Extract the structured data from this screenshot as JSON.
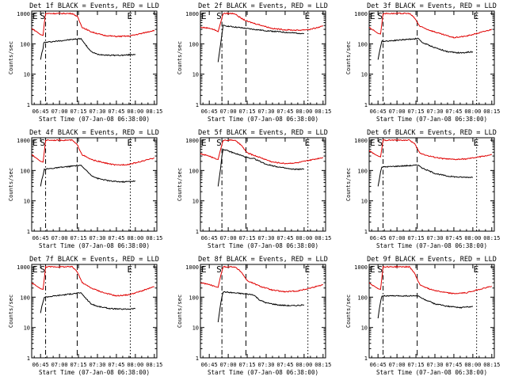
{
  "colors": {
    "events": "#000000",
    "lld": "#e00000",
    "axis": "#000000"
  },
  "shared": {
    "ylabel": "Counts/sec",
    "xlabel": "Start Time (07-Jan-08 06:38:00)",
    "xticks": [
      "06:45",
      "07:00",
      "07:15",
      "07:30",
      "07:45",
      "08:00",
      "08:15"
    ],
    "yticks": [
      "1",
      "10",
      "100",
      "1000"
    ]
  },
  "chart_data": [
    {
      "type": "line",
      "title": "Det 1f BLACK = Events, RED = LLD",
      "marks": {
        "E_left": "E",
        "S": "S",
        "E_right": "E"
      },
      "xlim": [
        "06:38",
        "08:17"
      ],
      "ylim": [
        1,
        1200
      ],
      "yscale": "log",
      "vlines": [
        {
          "x": "06:49",
          "style": "dash-dot"
        },
        {
          "x": "07:14",
          "style": "dash"
        },
        {
          "x": "07:56",
          "style": "dotted"
        }
      ],
      "series": [
        {
          "name": "Events",
          "color": "#000000",
          "x": [
            "06:45",
            "06:46",
            "06:47",
            "06:47.5",
            "07:17",
            "07:20",
            "07:25",
            "07:30",
            "07:40",
            "07:50",
            "08:00"
          ],
          "values": [
            30,
            50,
            70,
            110,
            150,
            100,
            55,
            45,
            42,
            42,
            45
          ]
        },
        {
          "name": "LLD",
          "color": "#e00000",
          "x": [
            "06:38",
            "06:42",
            "06:45",
            "06:47",
            "06:48",
            "06:49",
            "07:10",
            "07:14",
            "07:18",
            "07:25",
            "07:35",
            "07:45",
            "07:55",
            "08:05",
            "08:15"
          ],
          "values": [
            320,
            250,
            200,
            190,
            500,
            1000,
            1000,
            800,
            350,
            250,
            190,
            175,
            180,
            220,
            280
          ]
        }
      ]
    },
    {
      "type": "line",
      "title": "Det 2f BLACK = Events, RED = LLD",
      "marks": {
        "E_left": "E",
        "S": "S",
        "E_right": "E"
      },
      "xlim": [
        "06:38",
        "08:17"
      ],
      "ylim": [
        1,
        1200
      ],
      "yscale": "log",
      "vlines": [
        {
          "x": "06:55",
          "style": "dash-dot"
        },
        {
          "x": "07:14",
          "style": "dash"
        },
        {
          "x": "08:03",
          "style": "dotted"
        }
      ],
      "series": [
        {
          "name": "Events",
          "color": "#000000",
          "x": [
            "06:52",
            "06:53",
            "06:54",
            "06:55",
            "06:56",
            "07:20",
            "07:30",
            "07:40",
            "07:50",
            "08:00"
          ],
          "values": [
            25,
            50,
            100,
            200,
            400,
            300,
            270,
            250,
            230,
            220
          ]
        },
        {
          "name": "LLD",
          "color": "#e00000",
          "x": [
            "06:38",
            "06:45",
            "06:50",
            "06:52",
            "06:54",
            "06:56",
            "07:05",
            "07:10",
            "07:15",
            "07:25",
            "07:35",
            "07:45",
            "07:55",
            "08:05",
            "08:15"
          ],
          "values": [
            350,
            330,
            280,
            250,
            500,
            1000,
            1000,
            700,
            550,
            420,
            320,
            290,
            280,
            300,
            380
          ]
        }
      ]
    },
    {
      "type": "line",
      "title": "Det 3f BLACK = Events, RED = LLD",
      "marks": {
        "E_left": "E",
        "S": "S",
        "E_right": "E"
      },
      "xlim": [
        "06:38",
        "08:17"
      ],
      "ylim": [
        1,
        1200
      ],
      "yscale": "log",
      "vlines": [
        {
          "x": "06:49",
          "style": "dash-dot"
        },
        {
          "x": "07:16",
          "style": "dash"
        },
        {
          "x": "08:03",
          "style": "dotted"
        }
      ],
      "series": [
        {
          "name": "Events",
          "color": "#000000",
          "x": [
            "06:45",
            "06:46",
            "06:47",
            "06:48",
            "07:17",
            "07:20",
            "07:30",
            "07:40",
            "07:50",
            "08:00"
          ],
          "values": [
            30,
            50,
            80,
            120,
            150,
            110,
            75,
            55,
            50,
            55
          ]
        },
        {
          "name": "LLD",
          "color": "#e00000",
          "x": [
            "06:38",
            "06:42",
            "06:45",
            "06:47",
            "06:49",
            "07:10",
            "07:14",
            "07:18",
            "07:25",
            "07:35",
            "07:45",
            "07:55",
            "08:05",
            "08:15"
          ],
          "values": [
            350,
            270,
            220,
            210,
            1000,
            1000,
            700,
            380,
            290,
            210,
            160,
            180,
            230,
            300
          ]
        }
      ]
    },
    {
      "type": "line",
      "title": "Det 4f BLACK = Events, RED = LLD",
      "marks": {
        "E_left": "E",
        "S": "S",
        "E_right": "E"
      },
      "xlim": [
        "06:38",
        "08:17"
      ],
      "ylim": [
        1,
        1200
      ],
      "yscale": "log",
      "vlines": [
        {
          "x": "06:49",
          "style": "dash-dot"
        },
        {
          "x": "07:14",
          "style": "dash"
        },
        {
          "x": "07:56",
          "style": "dotted"
        }
      ],
      "series": [
        {
          "name": "Events",
          "color": "#000000",
          "x": [
            "06:45",
            "06:46",
            "06:47",
            "06:48",
            "07:17",
            "07:20",
            "07:25",
            "07:30",
            "07:40",
            "07:50",
            "08:00"
          ],
          "values": [
            30,
            50,
            70,
            110,
            150,
            110,
            70,
            55,
            45,
            42,
            45
          ]
        },
        {
          "name": "LLD",
          "color": "#e00000",
          "x": [
            "06:38",
            "06:42",
            "06:45",
            "06:47",
            "06:49",
            "07:10",
            "07:14",
            "07:18",
            "07:25",
            "07:35",
            "07:45",
            "07:55",
            "08:05",
            "08:15"
          ],
          "values": [
            330,
            250,
            200,
            190,
            1000,
            1000,
            700,
            330,
            230,
            180,
            150,
            160,
            200,
            260
          ]
        }
      ]
    },
    {
      "type": "line",
      "title": "Det 5f BLACK = Events, RED = LLD",
      "marks": {
        "E_left": "E",
        "S": "S",
        "E_right": "E"
      },
      "xlim": [
        "06:38",
        "08:17"
      ],
      "ylim": [
        1,
        1200
      ],
      "yscale": "log",
      "vlines": [
        {
          "x": "06:55",
          "style": "dash-dot"
        },
        {
          "x": "07:14",
          "style": "dash"
        },
        {
          "x": "08:03",
          "style": "dotted"
        }
      ],
      "series": [
        {
          "name": "Events",
          "color": "#000000",
          "x": [
            "06:52",
            "06:53",
            "06:54",
            "06:55",
            "06:56",
            "07:17",
            "07:20",
            "07:25",
            "07:30",
            "07:40",
            "07:50",
            "08:00"
          ],
          "values": [
            30,
            60,
            120,
            300,
            500,
            250,
            250,
            200,
            160,
            130,
            110,
            110
          ]
        },
        {
          "name": "LLD",
          "color": "#e00000",
          "x": [
            "06:38",
            "06:45",
            "06:50",
            "06:52",
            "06:54",
            "06:56",
            "07:05",
            "07:10",
            "07:15",
            "07:25",
            "07:35",
            "07:45",
            "07:55",
            "08:05",
            "08:15"
          ],
          "values": [
            350,
            300,
            240,
            230,
            500,
            1000,
            1000,
            700,
            380,
            270,
            190,
            170,
            180,
            220,
            270
          ]
        }
      ]
    },
    {
      "type": "line",
      "title": "Det 6f BLACK = Events, RED = LLD",
      "marks": {
        "E_left": "E",
        "S": "S",
        "E_right": "E"
      },
      "xlim": [
        "06:38",
        "08:17"
      ],
      "ylim": [
        1,
        1200
      ],
      "yscale": "log",
      "vlines": [
        {
          "x": "06:49",
          "style": "dash-dot"
        },
        {
          "x": "07:16",
          "style": "dash"
        },
        {
          "x": "08:03",
          "style": "dotted"
        }
      ],
      "series": [
        {
          "name": "Events",
          "color": "#000000",
          "x": [
            "06:45",
            "06:46",
            "06:47",
            "06:48",
            "07:17",
            "07:20",
            "07:30",
            "07:40",
            "07:50",
            "08:00"
          ],
          "values": [
            30,
            50,
            90,
            130,
            150,
            120,
            80,
            65,
            60,
            60
          ]
        },
        {
          "name": "LLD",
          "color": "#e00000",
          "x": [
            "06:38",
            "06:42",
            "06:45",
            "06:47",
            "06:49",
            "07:10",
            "07:14",
            "07:18",
            "07:25",
            "07:35",
            "07:45",
            "07:55",
            "08:05",
            "08:15"
          ],
          "values": [
            450,
            350,
            300,
            280,
            1000,
            1000,
            750,
            380,
            300,
            250,
            230,
            240,
            280,
            330
          ]
        }
      ]
    },
    {
      "type": "line",
      "title": "Det 7f BLACK = Events, RED = LLD",
      "marks": {
        "E_left": "E",
        "S": "S",
        "E_right": "E"
      },
      "xlim": [
        "06:38",
        "08:17"
      ],
      "ylim": [
        1,
        1200
      ],
      "yscale": "log",
      "vlines": [
        {
          "x": "06:49",
          "style": "dash-dot"
        },
        {
          "x": "07:14",
          "style": "dash"
        },
        {
          "x": "07:56",
          "style": "dotted"
        }
      ],
      "series": [
        {
          "name": "Events",
          "color": "#000000",
          "x": [
            "06:45",
            "06:46",
            "06:47",
            "06:48",
            "07:17",
            "07:20",
            "07:25",
            "07:30",
            "07:40",
            "07:50",
            "08:00"
          ],
          "values": [
            30,
            50,
            70,
            100,
            140,
            100,
            60,
            50,
            42,
            40,
            42
          ]
        },
        {
          "name": "LLD",
          "color": "#e00000",
          "x": [
            "06:38",
            "06:42",
            "06:45",
            "06:47",
            "06:49",
            "07:10",
            "07:14",
            "07:18",
            "07:25",
            "07:35",
            "07:45",
            "07:55",
            "08:05",
            "08:15"
          ],
          "values": [
            300,
            230,
            190,
            180,
            1000,
            1000,
            700,
            300,
            200,
            140,
            110,
            120,
            160,
            220
          ]
        }
      ]
    },
    {
      "type": "line",
      "title": "Det 8f BLACK = Events, RED = LLD",
      "marks": {
        "E_left": "E",
        "S": "S",
        "E_right": "E"
      },
      "xlim": [
        "06:38",
        "08:17"
      ],
      "ylim": [
        1,
        1200
      ],
      "yscale": "log",
      "vlines": [
        {
          "x": "06:55",
          "style": "dash-dot"
        },
        {
          "x": "07:14",
          "style": "dash"
        },
        {
          "x": "08:03",
          "style": "dotted"
        }
      ],
      "series": [
        {
          "name": "Events",
          "color": "#000000",
          "x": [
            "06:52",
            "06:53",
            "06:54",
            "06:55",
            "06:56",
            "07:20",
            "07:25",
            "07:30",
            "07:40",
            "07:50",
            "08:00"
          ],
          "values": [
            15,
            30,
            60,
            100,
            150,
            120,
            80,
            65,
            55,
            52,
            55
          ]
        },
        {
          "name": "LLD",
          "color": "#e00000",
          "x": [
            "06:38",
            "06:45",
            "06:50",
            "06:52",
            "06:54",
            "06:56",
            "07:05",
            "07:10",
            "07:15",
            "07:25",
            "07:35",
            "07:45",
            "07:55",
            "08:05",
            "08:15"
          ],
          "values": [
            300,
            260,
            220,
            210,
            500,
            1000,
            1000,
            700,
            350,
            230,
            170,
            150,
            160,
            200,
            260
          ]
        }
      ]
    },
    {
      "type": "line",
      "title": "Det 9f BLACK = Events, RED = LLD",
      "marks": {
        "E_left": "E",
        "S": "S",
        "E_right": "E"
      },
      "xlim": [
        "06:38",
        "08:17"
      ],
      "ylim": [
        1,
        1200
      ],
      "yscale": "log",
      "vlines": [
        {
          "x": "06:49",
          "style": "dash-dot"
        },
        {
          "x": "07:16",
          "style": "dash"
        },
        {
          "x": "08:03",
          "style": "dotted"
        }
      ],
      "series": [
        {
          "name": "Events",
          "color": "#000000",
          "x": [
            "06:45",
            "06:46",
            "06:47",
            "06:48",
            "07:17",
            "07:20",
            "07:30",
            "07:40",
            "07:50",
            "08:00"
          ],
          "values": [
            20,
            40,
            70,
            110,
            110,
            90,
            60,
            50,
            45,
            50
          ]
        },
        {
          "name": "LLD",
          "color": "#e00000",
          "x": [
            "06:38",
            "06:42",
            "06:45",
            "06:47",
            "06:49",
            "07:10",
            "07:14",
            "07:18",
            "07:25",
            "07:35",
            "07:45",
            "07:55",
            "08:05",
            "08:15"
          ],
          "values": [
            300,
            230,
            190,
            180,
            1000,
            1000,
            600,
            260,
            190,
            150,
            130,
            140,
            180,
            230
          ]
        }
      ]
    }
  ]
}
